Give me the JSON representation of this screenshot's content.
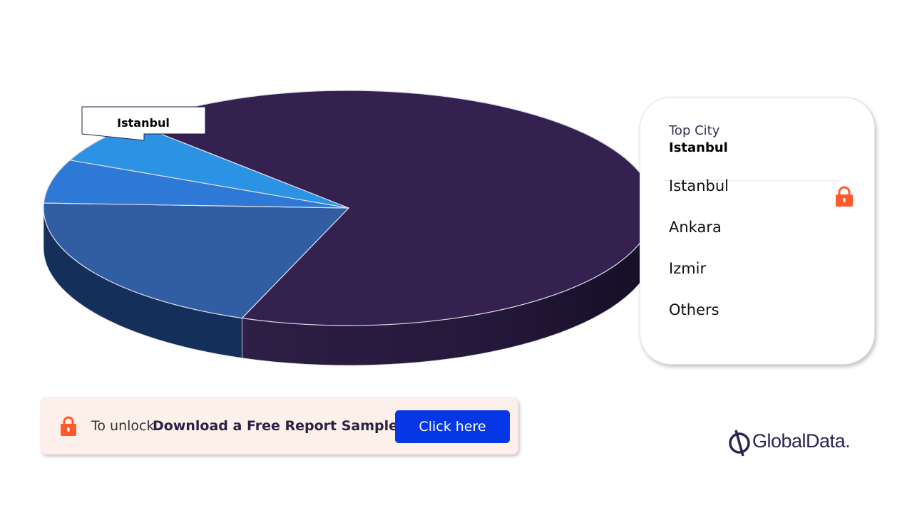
{
  "chart_data": {
    "type": "pie",
    "style": "3d",
    "categories": [
      "Istanbul",
      "Ankara",
      "Izmir",
      "Others"
    ],
    "values": [
      68,
      20,
      6,
      6
    ],
    "callout": "Istanbul"
  },
  "colors": {
    "istanbul": "#34214f",
    "ankara": "#315ea3",
    "izmir": "#2e78d6",
    "others": "#2b92e4",
    "accent": "#ff5a2b",
    "button": "#0537e6"
  },
  "legend": {
    "title": "Top City",
    "top_value": "Istanbul",
    "items": [
      "Istanbul",
      "Ankara",
      "Izmir",
      "Others"
    ]
  },
  "unlock": {
    "prefix": "To unlock",
    "cta_text": "Download a Free Report Sample",
    "button_label": "Click here"
  },
  "brand": {
    "name": "GlobalData."
  }
}
